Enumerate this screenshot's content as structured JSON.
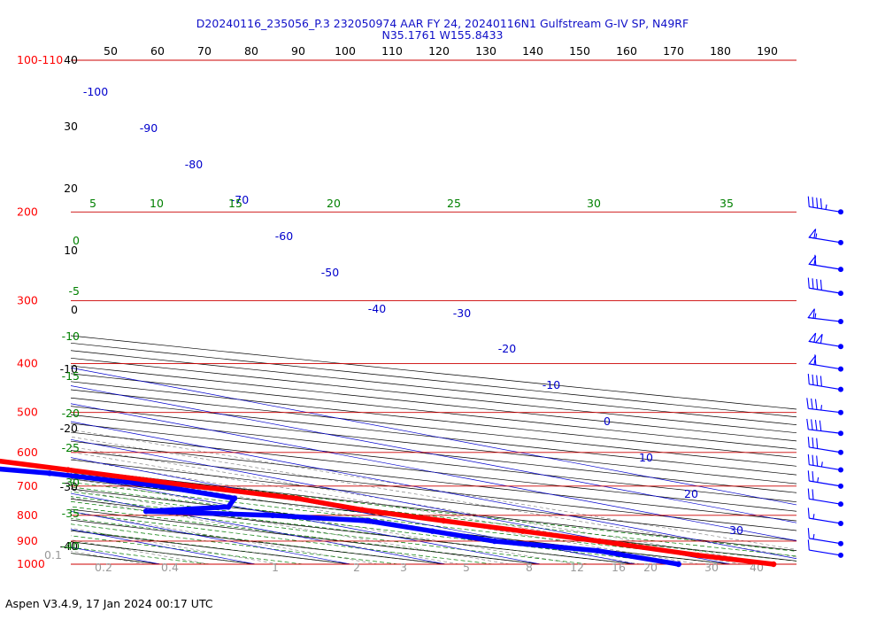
{
  "header": {
    "line1": "D20240116_235056_P.3 232050974 AAR FY 24, 20240116N1 Gulfstream G-IV SP, N49RF",
    "line2": "N35.1761 W155.8433"
  },
  "footer": {
    "text": "Aspen V3.4.9, 17 Jan 2024  00:17 UTC"
  },
  "colors": {
    "temperature": "#ff0000",
    "dewpoint": "#0000ff",
    "isobar": "#cc0000",
    "isotherm": "#0000cc",
    "dry_adiabat": "#000000",
    "moist_adiabat": "#007a00",
    "mixing_ratio": "#8a8a8a",
    "pressure_label": "#ff0000",
    "temp_label": "#0000cc",
    "adiabat_label": "#008000"
  },
  "chart_data": {
    "type": "skew-t",
    "pressure_labels": [
      "100-110",
      "200",
      "300",
      "400",
      "500",
      "600",
      "700",
      "800",
      "900",
      "1000"
    ],
    "pressure_values": [
      100,
      200,
      300,
      400,
      500,
      600,
      700,
      800,
      900,
      1000
    ],
    "top_scale": [
      "50",
      "60",
      "70",
      "80",
      "90",
      "100",
      "110",
      "120",
      "130",
      "140",
      "150",
      "160",
      "170",
      "180",
      "190"
    ],
    "left_scale": [
      "40",
      "30",
      "20",
      "10",
      "0",
      "-10",
      "-20",
      "-30",
      "-40"
    ],
    "isotherm_labels": [
      "-100",
      "-90",
      "-80",
      "-70",
      "-60",
      "-50",
      "-40",
      "-30",
      "-20",
      "-10",
      "0",
      "10",
      "20",
      "30"
    ],
    "dry_adiabat_labels": [
      "5",
      "10",
      "15",
      "20",
      "25",
      "30",
      "35"
    ],
    "moist_adiabat_labels": [
      "0",
      "-5",
      "-10",
      "-15",
      "-20",
      "-25",
      "-30",
      "-35",
      "-40"
    ],
    "mixing_ratio_labels": [
      "0.1",
      "0.2",
      "0.4",
      "1",
      "2",
      "3",
      "5",
      "8",
      "12",
      "16",
      "20",
      "30",
      "40"
    ],
    "temperature": [
      {
        "p": 220,
        "t": -46.6
      },
      {
        "p": 240,
        "t": -43.8
      },
      {
        "p": 250,
        "t": -43.6
      },
      {
        "p": 270,
        "t": -41.6
      },
      {
        "p": 280,
        "t": -39.4
      },
      {
        "p": 300,
        "t": -37.4
      },
      {
        "p": 310,
        "t": -35.6
      },
      {
        "p": 325,
        "t": -34.2
      },
      {
        "p": 345,
        "t": -31.0
      },
      {
        "p": 370,
        "t": -28.0
      },
      {
        "p": 400,
        "t": -24.0
      },
      {
        "p": 420,
        "t": -21.4
      },
      {
        "p": 450,
        "t": -17.7
      },
      {
        "p": 480,
        "t": -13.5
      },
      {
        "p": 520,
        "t": -9.0
      },
      {
        "p": 550,
        "t": -6.0
      },
      {
        "p": 600,
        "t": -1.8
      },
      {
        "p": 650,
        "t": 2.8
      },
      {
        "p": 700,
        "t": 7.0
      },
      {
        "p": 740,
        "t": 11.0
      },
      {
        "p": 780,
        "t": 11.5
      },
      {
        "p": 820,
        "t": 14.0
      },
      {
        "p": 860,
        "t": 16.5
      },
      {
        "p": 900,
        "t": 19.0
      },
      {
        "p": 960,
        "t": 21.5
      },
      {
        "p": 1000,
        "t": 24.5
      }
    ],
    "dewpoint": [
      {
        "p": 245,
        "t": -71.0
      },
      {
        "p": 270,
        "t": -71.0
      },
      {
        "p": 285,
        "t": -72.5
      },
      {
        "p": 300,
        "t": -72.0
      },
      {
        "p": 320,
        "t": -60.0
      },
      {
        "p": 345,
        "t": -53.0
      },
      {
        "p": 370,
        "t": -45.0
      },
      {
        "p": 390,
        "t": -36.5
      },
      {
        "p": 405,
        "t": -33.0
      },
      {
        "p": 425,
        "t": -30.0
      },
      {
        "p": 440,
        "t": -31.0
      },
      {
        "p": 460,
        "t": -38.0
      },
      {
        "p": 480,
        "t": -31.5
      },
      {
        "p": 510,
        "t": -26.0
      },
      {
        "p": 535,
        "t": -18.5
      },
      {
        "p": 560,
        "t": -15.0
      },
      {
        "p": 600,
        "t": -13.5
      },
      {
        "p": 630,
        "t": -8.0
      },
      {
        "p": 660,
        "t": -1.0
      },
      {
        "p": 700,
        "t": 3.5
      },
      {
        "p": 740,
        "t": 4.5
      },
      {
        "p": 770,
        "t": -1.0
      },
      {
        "p": 785,
        "t": -12.0
      },
      {
        "p": 800,
        "t": -1.0
      },
      {
        "p": 820,
        "t": 6.0
      },
      {
        "p": 860,
        "t": 7.0
      },
      {
        "p": 900,
        "t": 8.0
      },
      {
        "p": 940,
        "t": 13.5
      },
      {
        "p": 1000,
        "t": 14.5
      }
    ],
    "wind_barbs": [
      {
        "p": 200,
        "speed": 45,
        "dir": 250
      },
      {
        "p": 230,
        "speed": 55,
        "dir": 250
      },
      {
        "p": 260,
        "speed": 60,
        "dir": 250
      },
      {
        "p": 290,
        "speed": 40,
        "dir": 250
      },
      {
        "p": 330,
        "speed": 55,
        "dir": 255
      },
      {
        "p": 370,
        "speed": 100,
        "dir": 250
      },
      {
        "p": 410,
        "speed": 60,
        "dir": 250
      },
      {
        "p": 450,
        "speed": 40,
        "dir": 250
      },
      {
        "p": 500,
        "speed": 35,
        "dir": 255
      },
      {
        "p": 550,
        "speed": 40,
        "dir": 255
      },
      {
        "p": 600,
        "speed": 30,
        "dir": 250
      },
      {
        "p": 650,
        "speed": 35,
        "dir": 250
      },
      {
        "p": 700,
        "speed": 25,
        "dir": 250
      },
      {
        "p": 760,
        "speed": 20,
        "dir": 250
      },
      {
        "p": 830,
        "speed": 15,
        "dir": 250
      },
      {
        "p": 910,
        "speed": 15,
        "dir": 250
      },
      {
        "p": 960,
        "speed": 10,
        "dir": 250
      }
    ]
  }
}
